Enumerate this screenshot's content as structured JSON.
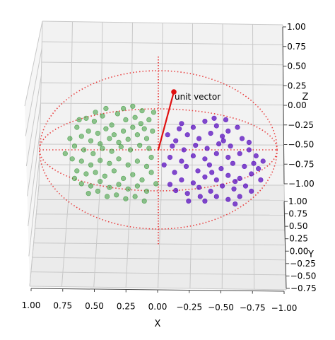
{
  "chart_data": {
    "type": "scatter",
    "projection": "3d",
    "title": "",
    "xlabel": "X",
    "ylabel": "Y",
    "zlabel": "Z",
    "xlim": [
      1.0,
      -1.0
    ],
    "ylim": [
      1.0,
      -0.75
    ],
    "zlim": [
      -1.0,
      1.0
    ],
    "x_ticks": [
      "1.00",
      "0.75",
      "0.50",
      "0.25",
      "0.00",
      "−0.25",
      "−0.50",
      "−0.75",
      "−1.00"
    ],
    "y_ticks": [
      "1.00",
      "0.75",
      "0.50",
      "0.25",
      "0.00",
      "−0.25",
      "−0.50",
      "−0.75"
    ],
    "z_ticks": [
      "1.00",
      "0.75",
      "0.50",
      "0.25",
      "0.00",
      "−0.25",
      "−0.50",
      "−0.75",
      "−1.00"
    ],
    "grid": true,
    "colors": {
      "group_a": "#3a9a3a",
      "group_b": "#5a0fbf",
      "sphere": "#e84040",
      "vector": "#e01010"
    },
    "sphere_wireframe": {
      "radius": 1.0,
      "style": "dotted"
    },
    "unit_vector": {
      "label": "unit vector",
      "origin": [
        0,
        0,
        0
      ],
      "direction": [
        -0.15,
        0.25,
        0.95
      ]
    },
    "series": [
      {
        "points_2d": [
          [
            0.62,
            0.42
          ],
          [
            0.55,
            0.38
          ],
          [
            0.48,
            0.45
          ],
          [
            0.7,
            0.3
          ],
          [
            0.4,
            0.33
          ],
          [
            0.35,
            0.48
          ],
          [
            0.28,
            0.4
          ],
          [
            0.2,
            0.43
          ],
          [
            0.15,
            0.35
          ],
          [
            0.6,
            0.25
          ],
          [
            0.52,
            0.22
          ],
          [
            0.45,
            0.28
          ],
          [
            0.38,
            0.2
          ],
          [
            0.3,
            0.25
          ],
          [
            0.22,
            0.3
          ],
          [
            0.12,
            0.28
          ],
          [
            0.08,
            0.4
          ],
          [
            0.66,
            0.18
          ],
          [
            0.58,
            0.12
          ],
          [
            0.5,
            0.08
          ],
          [
            0.42,
            0.15
          ],
          [
            0.34,
            0.1
          ],
          [
            0.26,
            0.14
          ],
          [
            0.18,
            0.2
          ],
          [
            0.1,
            0.15
          ],
          [
            0.05,
            0.25
          ],
          [
            0.72,
            0.05
          ],
          [
            0.64,
            0.0
          ],
          [
            0.56,
            -0.05
          ],
          [
            0.48,
            0.02
          ],
          [
            0.4,
            -0.02
          ],
          [
            0.32,
            0.04
          ],
          [
            0.24,
            0.0
          ],
          [
            0.16,
            0.06
          ],
          [
            0.08,
            0.02
          ],
          [
            0.74,
            -0.12
          ],
          [
            0.66,
            -0.15
          ],
          [
            0.58,
            -0.2
          ],
          [
            0.5,
            -0.14
          ],
          [
            0.42,
            -0.18
          ],
          [
            0.34,
            -0.12
          ],
          [
            0.26,
            -0.2
          ],
          [
            0.18,
            -0.15
          ],
          [
            0.1,
            -0.22
          ],
          [
            0.7,
            -0.28
          ],
          [
            0.62,
            -0.32
          ],
          [
            0.54,
            -0.3
          ],
          [
            0.46,
            -0.35
          ],
          [
            0.38,
            -0.28
          ],
          [
            0.3,
            -0.38
          ],
          [
            0.22,
            -0.33
          ],
          [
            0.14,
            -0.4
          ],
          [
            0.06,
            -0.3
          ],
          [
            0.66,
            -0.45
          ],
          [
            0.58,
            -0.48
          ],
          [
            0.5,
            -0.42
          ],
          [
            0.42,
            -0.5
          ],
          [
            0.34,
            -0.46
          ],
          [
            0.26,
            -0.52
          ],
          [
            0.18,
            -0.48
          ],
          [
            0.1,
            -0.55
          ],
          [
            0.6,
            -0.58
          ],
          [
            0.52,
            -0.55
          ],
          [
            0.44,
            -0.62
          ],
          [
            0.36,
            -0.6
          ],
          [
            0.28,
            -0.65
          ],
          [
            0.2,
            -0.62
          ],
          [
            0.12,
            -0.68
          ],
          [
            0.76,
            0.15
          ],
          [
            0.72,
            -0.38
          ],
          [
            0.3,
            0.55
          ],
          [
            0.22,
            0.58
          ],
          [
            0.45,
            0.55
          ],
          [
            0.06,
            -0.1
          ],
          [
            0.8,
            -0.05
          ],
          [
            0.04,
            0.5
          ],
          [
            0.14,
            0.52
          ],
          [
            0.54,
            0.5
          ],
          [
            0.68,
            0.4
          ],
          [
            0.02,
            -0.45
          ]
        ]
      },
      {
        "points_2d": [
          [
            -0.2,
            0.35
          ],
          [
            -0.3,
            0.3
          ],
          [
            -0.4,
            0.38
          ],
          [
            -0.5,
            0.32
          ],
          [
            -0.6,
            0.25
          ],
          [
            -0.68,
            0.3
          ],
          [
            -0.72,
            0.15
          ],
          [
            -0.55,
            0.18
          ],
          [
            -0.45,
            0.22
          ],
          [
            -0.35,
            0.15
          ],
          [
            -0.25,
            0.2
          ],
          [
            -0.15,
            0.12
          ],
          [
            -0.62,
            0.05
          ],
          [
            -0.52,
            0.08
          ],
          [
            -0.42,
            0.02
          ],
          [
            -0.32,
            0.06
          ],
          [
            -0.22,
            0.0
          ],
          [
            -0.12,
            0.05
          ],
          [
            -0.78,
            0.0
          ],
          [
            -0.7,
            -0.05
          ],
          [
            -0.6,
            -0.1
          ],
          [
            -0.5,
            -0.05
          ],
          [
            -0.4,
            -0.12
          ],
          [
            -0.3,
            -0.08
          ],
          [
            -0.2,
            -0.15
          ],
          [
            -0.1,
            -0.1
          ],
          [
            -0.82,
            -0.18
          ],
          [
            -0.74,
            -0.22
          ],
          [
            -0.64,
            -0.18
          ],
          [
            -0.54,
            -0.25
          ],
          [
            -0.44,
            -0.2
          ],
          [
            -0.34,
            -0.28
          ],
          [
            -0.24,
            -0.22
          ],
          [
            -0.14,
            -0.3
          ],
          [
            -0.8,
            -0.32
          ],
          [
            -0.7,
            -0.38
          ],
          [
            -0.6,
            -0.34
          ],
          [
            -0.5,
            -0.4
          ],
          [
            -0.4,
            -0.36
          ],
          [
            -0.3,
            -0.44
          ],
          [
            -0.2,
            -0.4
          ],
          [
            -0.1,
            -0.46
          ],
          [
            -0.75,
            -0.48
          ],
          [
            -0.65,
            -0.52
          ],
          [
            -0.55,
            -0.48
          ],
          [
            -0.45,
            -0.55
          ],
          [
            -0.35,
            -0.5
          ],
          [
            -0.25,
            -0.58
          ],
          [
            -0.15,
            -0.54
          ],
          [
            -0.7,
            -0.62
          ],
          [
            -0.6,
            -0.66
          ],
          [
            -0.5,
            -0.62
          ],
          [
            -0.4,
            -0.68
          ],
          [
            -0.66,
            -0.72
          ],
          [
            -0.84,
            -0.08
          ],
          [
            -0.86,
            -0.25
          ],
          [
            -0.78,
            0.1
          ],
          [
            -0.48,
            0.42
          ],
          [
            -0.58,
            0.4
          ],
          [
            -0.26,
            -0.68
          ],
          [
            -0.36,
            -0.62
          ],
          [
            -0.8,
            -0.55
          ],
          [
            -0.05,
            -0.2
          ],
          [
            -0.08,
            0.2
          ],
          [
            -0.9,
            -0.15
          ],
          [
            -0.88,
            -0.4
          ],
          [
            -0.46,
            -0.3
          ],
          [
            -0.56,
            0.12
          ],
          [
            -0.66,
            -0.42
          ],
          [
            -0.18,
            0.28
          ]
        ]
      }
    ]
  }
}
